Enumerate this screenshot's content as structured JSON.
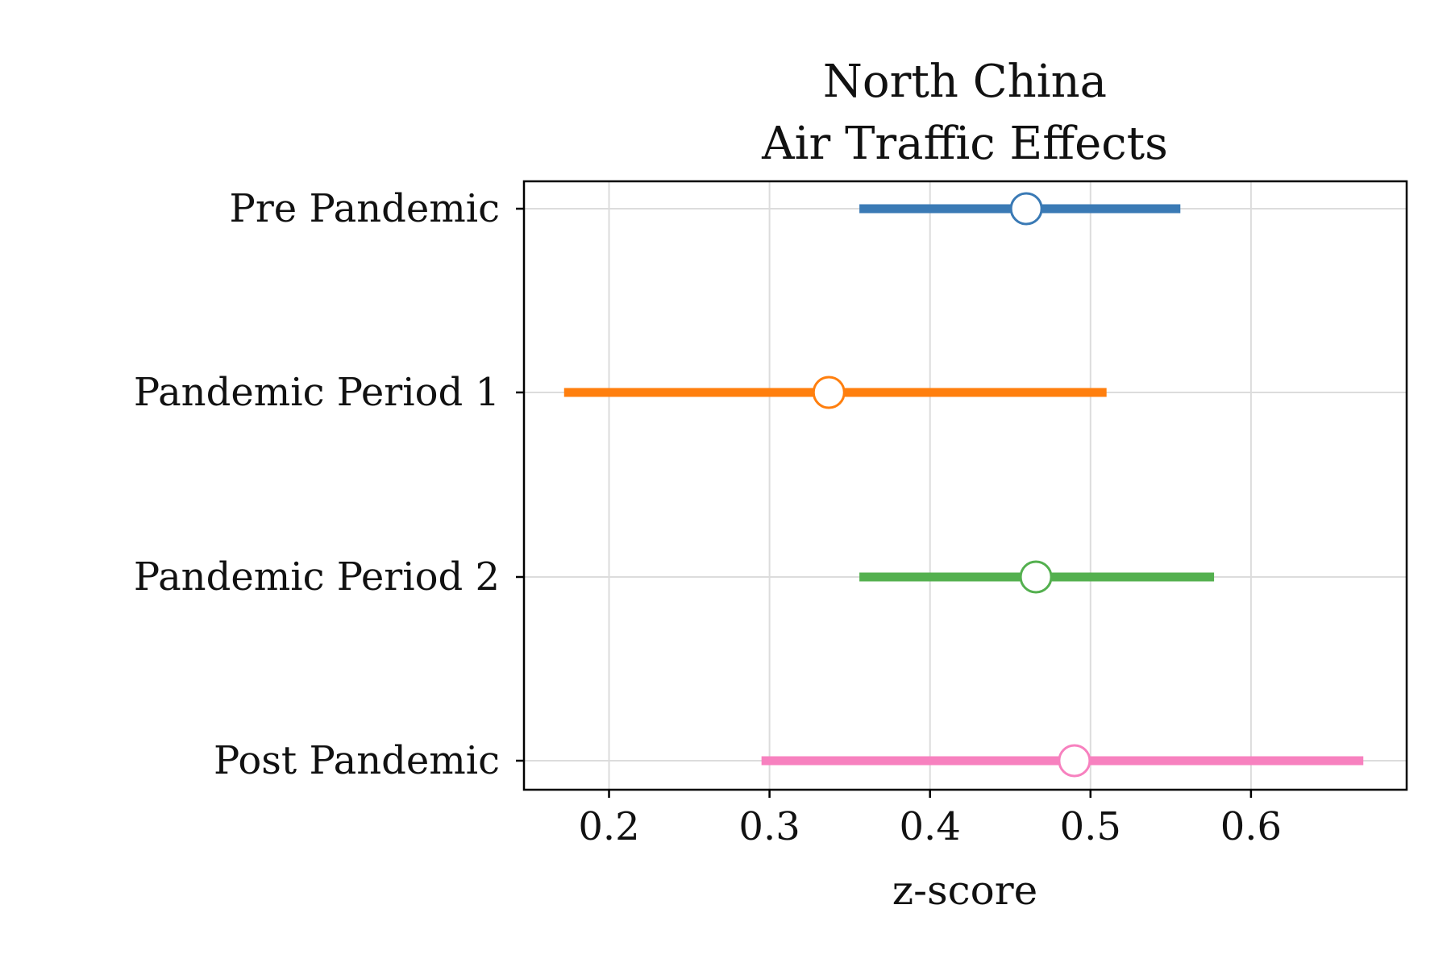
{
  "chart_data": {
    "type": "forest",
    "title": [
      "North China",
      "Air Traffic Effects"
    ],
    "xlabel": "z-score",
    "ylabel": "",
    "xlim": [
      0.147,
      0.697
    ],
    "xticks": [
      0.2,
      0.3,
      0.4,
      0.5,
      0.6
    ],
    "grid": true,
    "categories": [
      "Pre Pandemic",
      "Pandemic Period 1",
      "Pandemic Period 2",
      "Post Pandemic"
    ],
    "series": [
      {
        "category": "Pre Pandemic",
        "estimate": 0.46,
        "lower": 0.356,
        "upper": 0.556,
        "color": "#3a7ab5"
      },
      {
        "category": "Pandemic Period 1",
        "estimate": 0.337,
        "lower": 0.172,
        "upper": 0.51,
        "color": "#ff7f0e"
      },
      {
        "category": "Pandemic Period 2",
        "estimate": 0.466,
        "lower": 0.356,
        "upper": 0.577,
        "color": "#54b04f"
      },
      {
        "category": "Post Pandemic",
        "estimate": 0.49,
        "lower": 0.295,
        "upper": 0.67,
        "color": "#f781bf"
      }
    ]
  }
}
